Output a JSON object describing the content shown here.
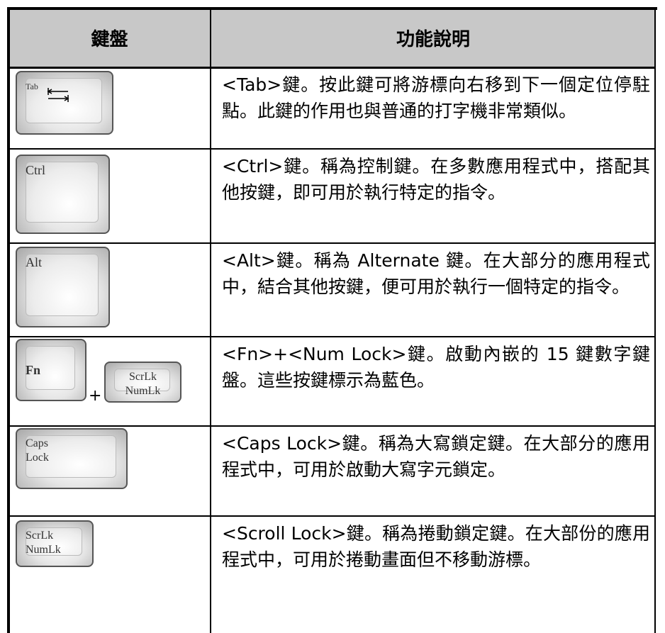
{
  "table": {
    "header": [
      "鍵盤",
      "功能說明"
    ],
    "rows": [
      {
        "keys": [
          [
            "Tab"
          ]
        ],
        "description": "<Tab>鍵。按此鍵可將游標向右移到下一個定位停駐點。此鍵的作用也與普通的打字機非常類似。"
      },
      {
        "keys": [
          [
            "Ctrl"
          ]
        ],
        "description": "<Ctrl>鍵。稱為控制鍵。在多數應用程式中，搭配其他按鍵，即可用於執行特定的指令。"
      },
      {
        "keys": [
          [
            "Alt"
          ]
        ],
        "description": "<Alt>鍵。稱為 Alternate 鍵。在大部分的應用程式中，結合其他按鍵，便可用於執行一個特定的指令。"
      },
      {
        "keys": [
          [
            "Fn"
          ],
          [
            "ScrLk",
            "NumLk"
          ]
        ],
        "joiner": "+",
        "description": "<Fn>+<Num Lock>鍵。啟動內嵌的 15 鍵數字鍵盤。這些按鍵標示為藍色。"
      },
      {
        "keys": [
          [
            "Caps",
            "Lock"
          ]
        ],
        "description": "<Caps Lock>鍵。稱為大寫鎖定鍵。在大部分的應用程式中，可用於啟動大寫字元鎖定。"
      },
      {
        "keys": [
          [
            "ScrLk",
            "NumLk"
          ]
        ],
        "description": "<Scroll Lock>鍵。稱為捲動鎖定鍵。在大部份的應用程式中，可用於捲動畫面但不移動游標。"
      }
    ]
  }
}
